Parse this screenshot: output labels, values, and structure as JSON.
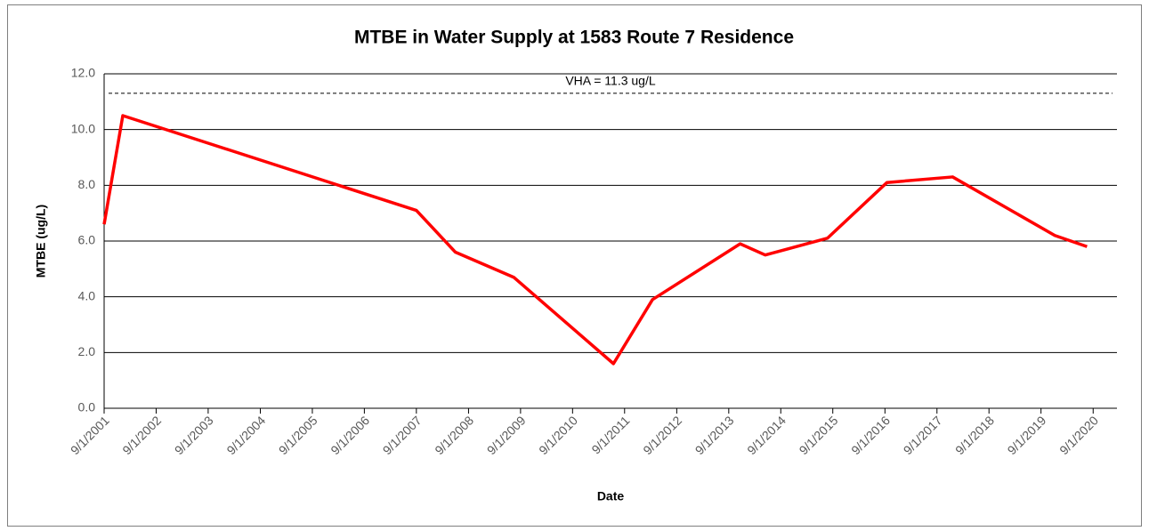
{
  "chart_data": {
    "type": "line",
    "title": "MTBE in Water Supply at 1583 Route 7 Residence",
    "x_label": "Date",
    "y_label": "MTBE (ug/L)",
    "x": [
      "2001-09-01",
      "2002-01-10",
      "2007-09-01",
      "2008-06-01",
      "2009-07-15",
      "2011-06-15",
      "2012-03-15",
      "2013-11-20",
      "2014-05-15",
      "2015-07-25",
      "2016-09-15",
      "2017-12-20",
      "2019-12-07",
      "2020-07-20"
    ],
    "series": [
      {
        "name": "MTBE",
        "color": "#ff0000",
        "values": [
          6.6,
          10.5,
          7.1,
          5.6,
          4.7,
          1.6,
          3.9,
          5.9,
          5.5,
          6.1,
          8.1,
          8.3,
          6.2,
          5.8
        ]
      }
    ],
    "xlim": [
      "2001-09-01",
      "2021-02-15"
    ],
    "xticks": [
      {
        "value": "2001-09-01",
        "label": "9/1/2001"
      },
      {
        "value": "2002-09-01",
        "label": "9/1/2002"
      },
      {
        "value": "2003-09-01",
        "label": "9/1/2003"
      },
      {
        "value": "2004-09-01",
        "label": "9/1/2004"
      },
      {
        "value": "2005-09-01",
        "label": "9/1/2005"
      },
      {
        "value": "2006-09-01",
        "label": "9/1/2006"
      },
      {
        "value": "2007-09-01",
        "label": "9/1/2007"
      },
      {
        "value": "2008-09-01",
        "label": "9/1/2008"
      },
      {
        "value": "2009-09-01",
        "label": "9/1/2009"
      },
      {
        "value": "2010-09-01",
        "label": "9/1/2010"
      },
      {
        "value": "2011-09-01",
        "label": "9/1/2011"
      },
      {
        "value": "2012-09-01",
        "label": "9/1/2012"
      },
      {
        "value": "2013-09-01",
        "label": "9/1/2013"
      },
      {
        "value": "2014-09-01",
        "label": "9/1/2014"
      },
      {
        "value": "2015-09-01",
        "label": "9/1/2015"
      },
      {
        "value": "2016-09-01",
        "label": "9/1/2016"
      },
      {
        "value": "2017-09-01",
        "label": "9/1/2017"
      },
      {
        "value": "2018-09-01",
        "label": "9/1/2018"
      },
      {
        "value": "2019-09-01",
        "label": "9/1/2019"
      },
      {
        "value": "2020-09-01",
        "label": "9/1/2020"
      }
    ],
    "ylim": [
      0,
      12
    ],
    "yticks": [
      {
        "value": 0,
        "label": "0.0"
      },
      {
        "value": 2,
        "label": "2.0"
      },
      {
        "value": 4,
        "label": "4.0"
      },
      {
        "value": 6,
        "label": "6.0"
      },
      {
        "value": 8,
        "label": "8.0"
      },
      {
        "value": 10,
        "label": "10.0"
      },
      {
        "value": 12,
        "label": "12.0"
      }
    ],
    "grid": true,
    "reference_line": {
      "value": 11.3,
      "label": "VHA = 11.3 ug/L"
    }
  }
}
